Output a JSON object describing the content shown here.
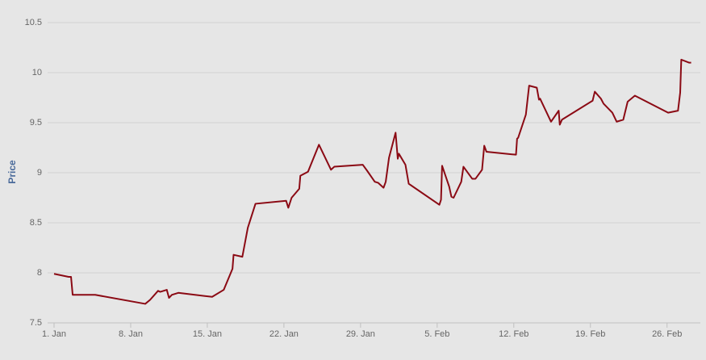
{
  "chart_data": {
    "type": "line",
    "y_label": "Price",
    "x": [
      1,
      2.33,
      2.55,
      2.7,
      4.4,
      4.76,
      9.33,
      9.77,
      10.5,
      10.7,
      11.3,
      11.5,
      11.76,
      12.35,
      15.44,
      16.5,
      17.3,
      17.4,
      18.2,
      18.7,
      19.4,
      22.2,
      22.4,
      22.7,
      23.4,
      23.5,
      24.2,
      25.2,
      26.3,
      26.6,
      29.2,
      29.6,
      30.3,
      30.6,
      31.1,
      31.3,
      31.6,
      32.2,
      32.4,
      32.5,
      33.1,
      33.4,
      36.2,
      36.35,
      36.45,
      37.1,
      37.3,
      37.5,
      38.2,
      38.4,
      39.2,
      39.5,
      40.1,
      40.3,
      40.5,
      43.2,
      43.3,
      43.4,
      44.1,
      44.4,
      45.1,
      45.3,
      45.4,
      46.4,
      47.1,
      47.2,
      47.4,
      50.2,
      50.4,
      50.96,
      51.2,
      52.0,
      52.4,
      53.0,
      53.4,
      54.06,
      57.1,
      58.0,
      58.2,
      58.3,
      59.0,
      59.2
    ],
    "series": [
      {
        "name": "Price",
        "color": "#8b0a14",
        "values": [
          7.99,
          7.96,
          7.96,
          7.78,
          7.78,
          7.78,
          7.69,
          7.73,
          7.82,
          7.81,
          7.83,
          7.75,
          7.78,
          7.8,
          7.76,
          7.83,
          8.04,
          8.18,
          8.16,
          8.45,
          8.69,
          8.72,
          8.65,
          8.75,
          8.84,
          8.97,
          9.01,
          9.28,
          9.03,
          9.06,
          9.08,
          9.02,
          8.91,
          8.9,
          8.85,
          8.91,
          9.15,
          9.4,
          9.14,
          9.19,
          9.08,
          8.89,
          8.68,
          8.73,
          9.07,
          8.86,
          8.76,
          8.75,
          8.91,
          9.06,
          8.94,
          8.94,
          9.03,
          9.27,
          9.21,
          9.18,
          9.34,
          9.35,
          9.58,
          9.87,
          9.85,
          9.73,
          9.74,
          9.51,
          9.62,
          9.48,
          9.53,
          9.72,
          9.81,
          9.74,
          9.69,
          9.6,
          9.51,
          9.53,
          9.71,
          9.77,
          9.6,
          9.62,
          9.8,
          10.13,
          10.1,
          10.1
        ]
      }
    ],
    "xlim": [
      1,
      59.6
    ],
    "xticks": [
      {
        "value": 1,
        "label": "1. Jan"
      },
      {
        "value": 8,
        "label": "8. Jan"
      },
      {
        "value": 15,
        "label": "15. Jan"
      },
      {
        "value": 22,
        "label": "22. Jan"
      },
      {
        "value": 29,
        "label": "29. Jan"
      },
      {
        "value": 36,
        "label": "5. Feb"
      },
      {
        "value": 43,
        "label": "12. Feb"
      },
      {
        "value": 50,
        "label": "19. Feb"
      },
      {
        "value": 57,
        "label": "26. Feb"
      }
    ],
    "ylim": [
      7.5,
      10.65
    ],
    "yticks": [
      7.5,
      8,
      8.5,
      9,
      9.5,
      10,
      10.5
    ],
    "grid": true
  }
}
